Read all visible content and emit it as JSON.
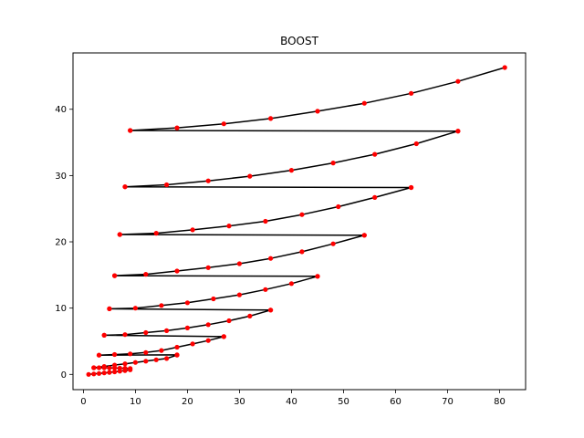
{
  "chart_data": {
    "type": "line",
    "title": "BOOST",
    "xlabel": "",
    "ylabel": "",
    "xlim": [
      -2.0,
      85.0
    ],
    "ylim": [
      -2.3,
      48.5
    ],
    "xticks": [
      0,
      10,
      20,
      30,
      40,
      50,
      60,
      70,
      80
    ],
    "yticks": [
      0,
      10,
      20,
      30,
      40
    ],
    "grid": false,
    "legend": "none",
    "line_color": "#000000",
    "marker_color": "#ff0000",
    "series": [
      {
        "points": [
          [
            1,
            0.0
          ],
          [
            2,
            0.07
          ],
          [
            3,
            0.14
          ],
          [
            4,
            0.22
          ],
          [
            5,
            0.3
          ],
          [
            6,
            0.39
          ],
          [
            7,
            0.48
          ],
          [
            8,
            0.58
          ],
          [
            9,
            0.69
          ],
          [
            9,
            0.9
          ],
          [
            8,
            0.92
          ],
          [
            7,
            0.94
          ],
          [
            6,
            0.96
          ],
          [
            5,
            0.98
          ],
          [
            4,
            1.0
          ],
          [
            3,
            1.0
          ],
          [
            2,
            1.0
          ],
          [
            2,
            1.0
          ],
          [
            4,
            1.2
          ],
          [
            6,
            1.4
          ],
          [
            8,
            1.6
          ],
          [
            10,
            1.8
          ],
          [
            12,
            2.0
          ],
          [
            14,
            2.2
          ],
          [
            16,
            2.4
          ],
          [
            18,
            2.9
          ],
          [
            18,
            2.95
          ],
          [
            3,
            2.9
          ],
          [
            3,
            2.9
          ],
          [
            6,
            3.0
          ],
          [
            9,
            3.1
          ],
          [
            12,
            3.3
          ],
          [
            15,
            3.6
          ],
          [
            18,
            4.1
          ],
          [
            21,
            4.6
          ],
          [
            24,
            5.1
          ],
          [
            27,
            5.7
          ],
          [
            27,
            5.7
          ],
          [
            4,
            5.9
          ],
          [
            4,
            5.9
          ],
          [
            8,
            6.0
          ],
          [
            12,
            6.3
          ],
          [
            16,
            6.6
          ],
          [
            20,
            7.0
          ],
          [
            24,
            7.5
          ],
          [
            28,
            8.1
          ],
          [
            32,
            8.8
          ],
          [
            36,
            9.7
          ],
          [
            36,
            9.7
          ],
          [
            5,
            9.9
          ],
          [
            5,
            9.9
          ],
          [
            10,
            10.0
          ],
          [
            15,
            10.4
          ],
          [
            20,
            10.8
          ],
          [
            25,
            11.4
          ],
          [
            30,
            12.0
          ],
          [
            35,
            12.8
          ],
          [
            40,
            13.7
          ],
          [
            45,
            14.8
          ],
          [
            45,
            14.8
          ],
          [
            6,
            14.9
          ],
          [
            6,
            14.9
          ],
          [
            12,
            15.1
          ],
          [
            18,
            15.6
          ],
          [
            24,
            16.1
          ],
          [
            30,
            16.7
          ],
          [
            36,
            17.5
          ],
          [
            42,
            18.5
          ],
          [
            48,
            19.7
          ],
          [
            54,
            21.0
          ],
          [
            54,
            21.0
          ],
          [
            7,
            21.1
          ],
          [
            7,
            21.1
          ],
          [
            14,
            21.3
          ],
          [
            21,
            21.8
          ],
          [
            28,
            22.4
          ],
          [
            35,
            23.1
          ],
          [
            42,
            24.1
          ],
          [
            49,
            25.3
          ],
          [
            56,
            26.7
          ],
          [
            63,
            28.2
          ],
          [
            63,
            28.2
          ],
          [
            8,
            28.3
          ],
          [
            8,
            28.3
          ],
          [
            16,
            28.6
          ],
          [
            24,
            29.2
          ],
          [
            32,
            29.9
          ],
          [
            40,
            30.8
          ],
          [
            48,
            31.9
          ],
          [
            56,
            33.2
          ],
          [
            64,
            34.8
          ],
          [
            72,
            36.7
          ],
          [
            72,
            36.7
          ],
          [
            9,
            36.8
          ],
          [
            9,
            36.8
          ],
          [
            18,
            37.2
          ],
          [
            27,
            37.8
          ],
          [
            36,
            38.6
          ],
          [
            45,
            39.7
          ],
          [
            54,
            40.9
          ],
          [
            63,
            42.4
          ],
          [
            72,
            44.2
          ],
          [
            81,
            46.3
          ]
        ]
      }
    ]
  }
}
